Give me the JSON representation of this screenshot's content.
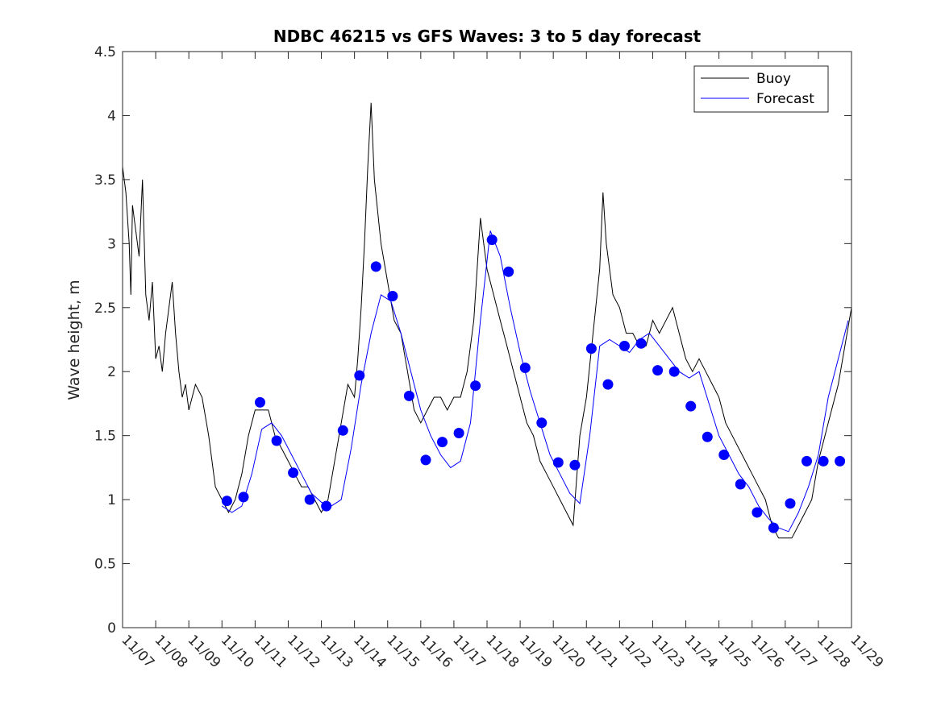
{
  "chart_data": {
    "type": "line",
    "title": "NDBC 46215 vs GFS Waves: 3 to 5 day forecast",
    "xlabel": "",
    "ylabel": "Wave height, m",
    "ylim": [
      0,
      4.5
    ],
    "yticks": [
      0,
      0.5,
      1,
      1.5,
      2,
      2.5,
      3,
      3.5,
      4,
      4.5
    ],
    "ytick_labels": [
      "0",
      "0.5",
      "1",
      "1.5",
      "2",
      "2.5",
      "3",
      "3.5",
      "4",
      "4.5"
    ],
    "xlim": [
      0,
      22
    ],
    "xticks": [
      0,
      1,
      2,
      3,
      4,
      5,
      6,
      7,
      8,
      9,
      10,
      11,
      12,
      13,
      14,
      15,
      16,
      17,
      18,
      19,
      20,
      21,
      22
    ],
    "xtick_labels": [
      "11/07",
      "11/08",
      "11/09",
      "11/10",
      "11/11",
      "11/12",
      "11/13",
      "11/14",
      "11/15",
      "11/16",
      "11/17",
      "11/18",
      "11/19",
      "11/20",
      "11/21",
      "11/22",
      "11/23",
      "11/24",
      "11/25",
      "11/26",
      "11/27",
      "11/28",
      "11/29"
    ],
    "legend": {
      "position": "top-right",
      "entries": [
        "Buoy",
        "Forecast"
      ]
    },
    "colors": {
      "buoy": "#000000",
      "forecast": "#0000ff",
      "markers": "#0000ff"
    },
    "series": [
      {
        "name": "Buoy",
        "x": [
          0,
          0.1,
          0.2,
          0.25,
          0.3,
          0.4,
          0.5,
          0.6,
          0.7,
          0.8,
          0.9,
          1.0,
          1.1,
          1.2,
          1.3,
          1.4,
          1.5,
          1.6,
          1.7,
          1.8,
          1.9,
          2.0,
          2.2,
          2.4,
          2.6,
          2.8,
          3.0,
          3.2,
          3.4,
          3.6,
          3.8,
          4.0,
          4.2,
          4.4,
          4.6,
          4.8,
          5.0,
          5.2,
          5.4,
          5.6,
          5.8,
          6.0,
          6.2,
          6.4,
          6.6,
          6.8,
          7.0,
          7.1,
          7.2,
          7.3,
          7.4,
          7.5,
          7.6,
          7.8,
          8.0,
          8.2,
          8.4,
          8.6,
          8.8,
          9.0,
          9.2,
          9.4,
          9.6,
          9.8,
          10.0,
          10.2,
          10.4,
          10.6,
          10.8,
          11.0,
          11.2,
          11.4,
          11.6,
          11.8,
          12.0,
          12.2,
          12.4,
          12.6,
          12.8,
          13.0,
          13.2,
          13.4,
          13.6,
          13.8,
          14.0,
          14.2,
          14.4,
          14.5,
          14.6,
          14.8,
          15.0,
          15.2,
          15.4,
          15.6,
          15.8,
          16.0,
          16.2,
          16.4,
          16.6,
          16.8,
          17.0,
          17.2,
          17.4,
          17.6,
          17.8,
          18.0,
          18.2,
          18.4,
          18.6,
          18.8,
          19.0,
          19.2,
          19.4,
          19.6,
          19.8,
          20.0,
          20.2,
          20.4,
          20.6,
          20.8,
          21.0,
          21.2,
          21.4,
          21.6,
          21.8,
          22.0
        ],
        "values": [
          3.6,
          3.4,
          3.0,
          2.6,
          3.3,
          3.1,
          2.9,
          3.5,
          2.6,
          2.4,
          2.7,
          2.1,
          2.2,
          2.0,
          2.3,
          2.5,
          2.7,
          2.3,
          2.0,
          1.8,
          1.9,
          1.7,
          1.9,
          1.8,
          1.5,
          1.1,
          1.0,
          0.9,
          1.0,
          1.2,
          1.5,
          1.7,
          1.7,
          1.7,
          1.5,
          1.4,
          1.3,
          1.2,
          1.1,
          1.1,
          1.0,
          0.9,
          1.0,
          1.3,
          1.6,
          1.9,
          1.8,
          2.1,
          2.5,
          3.0,
          3.6,
          4.1,
          3.5,
          3.0,
          2.7,
          2.4,
          2.3,
          2.0,
          1.7,
          1.6,
          1.7,
          1.8,
          1.8,
          1.7,
          1.8,
          1.8,
          2.0,
          2.4,
          3.2,
          2.8,
          2.6,
          2.4,
          2.2,
          2.0,
          1.8,
          1.6,
          1.5,
          1.3,
          1.2,
          1.1,
          1.0,
          0.9,
          0.8,
          1.5,
          1.8,
          2.3,
          2.8,
          3.4,
          3.0,
          2.6,
          2.5,
          2.3,
          2.3,
          2.2,
          2.2,
          2.4,
          2.3,
          2.4,
          2.5,
          2.3,
          2.1,
          2.0,
          2.1,
          2.0,
          1.9,
          1.8,
          1.6,
          1.5,
          1.4,
          1.3,
          1.2,
          1.1,
          1.0,
          0.8,
          0.7,
          0.7,
          0.7,
          0.8,
          0.9,
          1.0,
          1.3,
          1.5,
          1.7,
          1.9,
          2.2,
          2.5
        ]
      },
      {
        "name": "Forecast",
        "x": [
          3.0,
          3.3,
          3.6,
          3.9,
          4.2,
          4.5,
          4.8,
          5.1,
          5.4,
          5.7,
          6.0,
          6.3,
          6.6,
          6.9,
          7.2,
          7.5,
          7.8,
          8.1,
          8.4,
          8.7,
          9.0,
          9.3,
          9.6,
          9.9,
          10.2,
          10.5,
          10.8,
          11.1,
          11.4,
          11.7,
          12.0,
          12.3,
          12.6,
          12.9,
          13.2,
          13.5,
          13.8,
          14.1,
          14.4,
          14.7,
          15.0,
          15.3,
          15.6,
          15.9,
          16.2,
          16.5,
          16.8,
          17.1,
          17.4,
          17.7,
          18.0,
          18.3,
          18.6,
          18.9,
          19.2,
          19.5,
          19.8,
          20.1,
          20.4,
          20.7,
          21.0,
          21.3,
          21.6,
          21.9
        ],
        "values": [
          0.95,
          0.9,
          0.95,
          1.2,
          1.55,
          1.6,
          1.5,
          1.35,
          1.2,
          1.05,
          0.98,
          0.95,
          1.0,
          1.4,
          1.9,
          2.3,
          2.6,
          2.55,
          2.3,
          2.0,
          1.7,
          1.5,
          1.35,
          1.25,
          1.3,
          1.6,
          2.4,
          3.1,
          2.9,
          2.5,
          2.15,
          1.85,
          1.6,
          1.35,
          1.2,
          1.05,
          0.97,
          1.5,
          2.2,
          2.25,
          2.2,
          2.15,
          2.25,
          2.3,
          2.2,
          2.1,
          2.0,
          1.95,
          2.0,
          1.75,
          1.5,
          1.35,
          1.2,
          1.1,
          0.95,
          0.85,
          0.78,
          0.75,
          0.9,
          1.1,
          1.35,
          1.8,
          2.1,
          2.4
        ]
      },
      {
        "name": "Forecast markers",
        "x": [
          3.15,
          3.65,
          4.15,
          4.65,
          5.15,
          5.65,
          6.15,
          6.65,
          7.15,
          7.65,
          8.15,
          8.65,
          9.15,
          9.65,
          10.15,
          10.65,
          11.15,
          11.65,
          12.15,
          12.65,
          13.15,
          13.65,
          14.15,
          14.65,
          15.15,
          15.65,
          16.15,
          16.65,
          17.15,
          17.65,
          18.15,
          18.65,
          19.15,
          19.65,
          20.15,
          20.65,
          21.15,
          21.65
        ],
        "values": [
          0.99,
          1.02,
          1.76,
          1.46,
          1.21,
          1.0,
          0.95,
          1.54,
          1.97,
          2.82,
          2.59,
          1.81,
          1.31,
          1.45,
          1.52,
          1.89,
          3.03,
          2.78,
          2.03,
          1.6,
          1.29,
          1.27,
          2.18,
          1.9,
          2.2,
          2.22,
          2.01,
          2.0,
          1.73,
          1.49,
          1.35,
          1.12,
          0.9,
          0.78,
          0.97,
          1.3,
          1.3,
          1.3
        ]
      }
    ]
  }
}
